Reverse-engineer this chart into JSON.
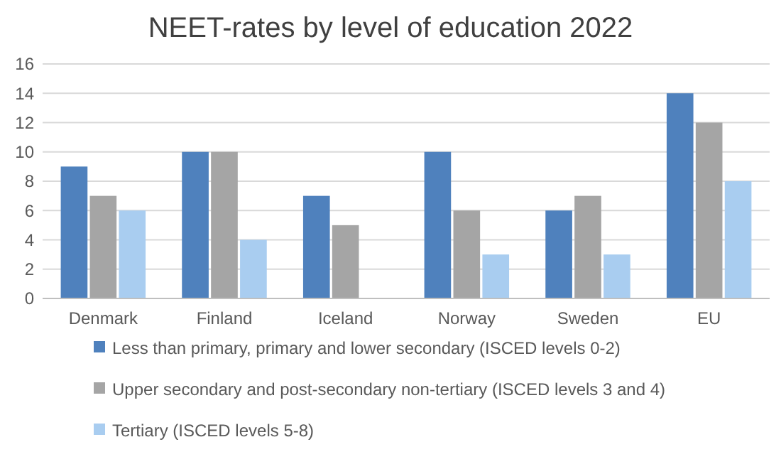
{
  "chart_data": {
    "type": "bar",
    "title": "NEET-rates by level of education 2022",
    "categories": [
      "Denmark",
      "Finland",
      "Iceland",
      "Norway",
      "Sweden",
      "EU"
    ],
    "series": [
      {
        "name": "Less than primary, primary and lower secondary (ISCED levels 0-2)",
        "color": "#4f81bd",
        "values": [
          9,
          10,
          7,
          10,
          6,
          14
        ]
      },
      {
        "name": "Upper secondary and post-secondary non-tertiary (ISCED levels 3 and 4)",
        "color": "#a5a5a5",
        "values": [
          7,
          10,
          5,
          6,
          7,
          12
        ]
      },
      {
        "name": "Tertiary (ISCED levels 5-8)",
        "color": "#a9cdf0",
        "values": [
          6,
          4,
          null,
          3,
          3,
          8
        ]
      }
    ],
    "ylim": [
      0,
      16
    ],
    "yticks": [
      0,
      2,
      4,
      6,
      8,
      10,
      12,
      14,
      16
    ],
    "grid": "y",
    "legend": "bottom"
  }
}
